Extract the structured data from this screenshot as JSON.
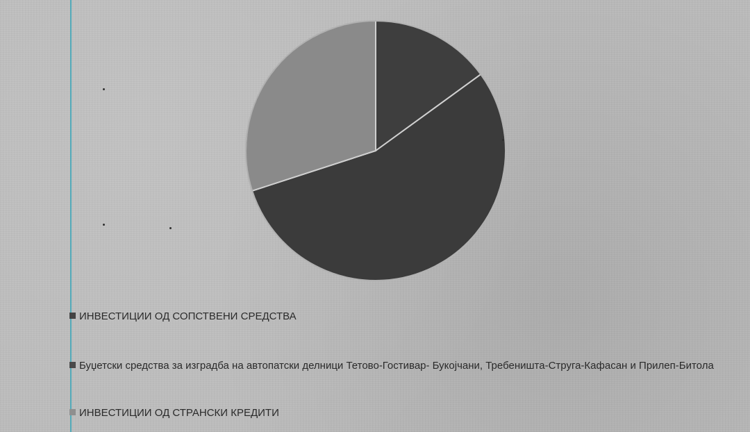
{
  "chart_data": {
    "type": "pie",
    "title": "",
    "slices": [
      {
        "label": "ИНВЕСТИЦИИ ОД СОПСТВЕНИ СРЕДСТВА",
        "value": 15,
        "color": "#3e3e3e"
      },
      {
        "label": "Буџетски средства за изградба на автопатски делници Тетово-Гостивар- Букојчани, Требеништа-Струга-Кафасан и Прилеп-Битола",
        "value": 55,
        "color": "#3b3b3b"
      },
      {
        "label": "ИНВЕСТИЦИИ ОД СТРАНСКИ КРЕДИТИ",
        "value": 30,
        "color": "#8a8a8a"
      }
    ],
    "start_angle_deg": 0,
    "direction": "clockwise",
    "legend_position": "bottom-left"
  },
  "legend": {
    "items": [
      {
        "label": "ИНВЕСТИЦИИ ОД СОПСТВЕНИ СРЕДСТВА",
        "color": "#444444"
      },
      {
        "label": "Буџетски средства за изградба на автопатски делници Тетово-Гостивар- Букојчани, Требеништа-Струга-Кафасан и Прилеп-Битола",
        "color": "#4a4a4a"
      },
      {
        "label": "ИНВЕСТИЦИИ ОД СТРАНСКИ КРЕДИТИ",
        "color": "#8f8f8f"
      }
    ]
  }
}
